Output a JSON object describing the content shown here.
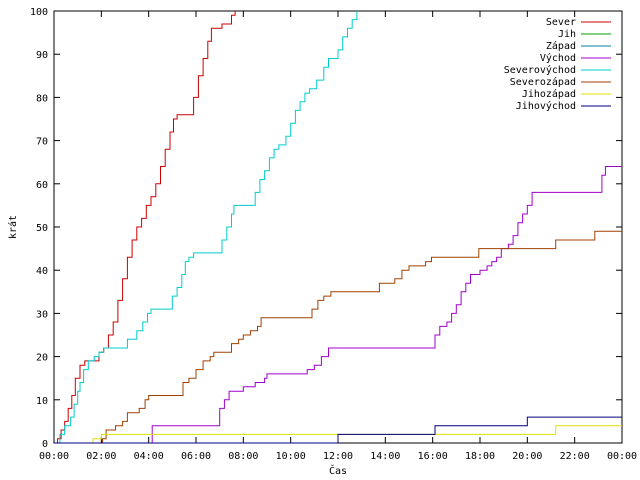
{
  "chart_data": {
    "type": "line",
    "xlabel": "Čas",
    "ylabel": "krát",
    "xlim": [
      0,
      24
    ],
    "ylim": [
      0,
      100
    ],
    "x_ticks": [
      {
        "v": 0,
        "label": "00:00"
      },
      {
        "v": 2,
        "label": "02:00"
      },
      {
        "v": 4,
        "label": "04:00"
      },
      {
        "v": 6,
        "label": "06:00"
      },
      {
        "v": 8,
        "label": "08:00"
      },
      {
        "v": 10,
        "label": "10:00"
      },
      {
        "v": 12,
        "label": "12:00"
      },
      {
        "v": 14,
        "label": "14:00"
      },
      {
        "v": 16,
        "label": "16:00"
      },
      {
        "v": 18,
        "label": "18:00"
      },
      {
        "v": 20,
        "label": "20:00"
      },
      {
        "v": 22,
        "label": "22:00"
      },
      {
        "v": 24,
        "label": "00:00"
      }
    ],
    "y_ticks": [
      0,
      10,
      20,
      30,
      40,
      50,
      60,
      70,
      80,
      90,
      100
    ],
    "grid": false,
    "legend_position": "top-right",
    "series": [
      {
        "name": "Sever",
        "color": "#cc0000",
        "step": true,
        "points": [
          [
            0,
            0
          ],
          [
            0.15,
            1
          ],
          [
            0.3,
            3
          ],
          [
            0.45,
            5
          ],
          [
            0.6,
            8
          ],
          [
            0.75,
            11
          ],
          [
            0.9,
            15
          ],
          [
            1.1,
            18
          ],
          [
            1.3,
            19
          ],
          [
            1.7,
            19
          ],
          [
            1.9,
            21
          ],
          [
            2.1,
            22
          ],
          [
            2.3,
            25
          ],
          [
            2.5,
            28
          ],
          [
            2.7,
            33
          ],
          [
            2.9,
            38
          ],
          [
            3.1,
            43
          ],
          [
            3.3,
            47
          ],
          [
            3.5,
            50
          ],
          [
            3.7,
            52
          ],
          [
            3.9,
            55
          ],
          [
            4.1,
            57
          ],
          [
            4.3,
            60
          ],
          [
            4.5,
            64
          ],
          [
            4.7,
            68
          ],
          [
            4.9,
            72
          ],
          [
            5.05,
            75
          ],
          [
            5.2,
            76
          ],
          [
            5.7,
            76
          ],
          [
            5.9,
            80
          ],
          [
            6.1,
            85
          ],
          [
            6.3,
            89
          ],
          [
            6.5,
            93
          ],
          [
            6.65,
            96
          ],
          [
            7.1,
            97
          ],
          [
            7.5,
            99
          ],
          [
            7.65,
            100
          ]
        ]
      },
      {
        "name": "Jih",
        "color": "#00a000",
        "step": true,
        "points": []
      },
      {
        "name": "Západ",
        "color": "#0080a0",
        "step": true,
        "points": []
      },
      {
        "name": "Východ",
        "color": "#a000cc",
        "step": true,
        "points": [
          [
            0,
            0
          ],
          [
            4.05,
            0
          ],
          [
            4.15,
            4
          ],
          [
            6.85,
            4
          ],
          [
            7.0,
            8
          ],
          [
            7.2,
            10
          ],
          [
            7.4,
            12
          ],
          [
            8.0,
            13
          ],
          [
            8.5,
            14
          ],
          [
            8.9,
            15
          ],
          [
            9.0,
            16
          ],
          [
            10.5,
            16
          ],
          [
            10.7,
            17
          ],
          [
            11.0,
            18
          ],
          [
            11.3,
            20
          ],
          [
            11.6,
            22
          ],
          [
            15.9,
            22
          ],
          [
            16.1,
            25
          ],
          [
            16.3,
            27
          ],
          [
            16.6,
            28
          ],
          [
            16.8,
            30
          ],
          [
            17.0,
            32
          ],
          [
            17.2,
            35
          ],
          [
            17.4,
            37
          ],
          [
            17.6,
            39
          ],
          [
            18.0,
            40
          ],
          [
            18.3,
            41
          ],
          [
            18.5,
            42
          ],
          [
            18.7,
            43
          ],
          [
            18.9,
            45
          ],
          [
            19.2,
            46
          ],
          [
            19.4,
            48
          ],
          [
            19.6,
            51
          ],
          [
            19.8,
            53
          ],
          [
            20.0,
            55
          ],
          [
            20.2,
            58
          ],
          [
            23.0,
            58
          ],
          [
            23.15,
            62
          ],
          [
            23.3,
            64
          ],
          [
            24,
            64
          ]
        ]
      },
      {
        "name": "Severovýchod",
        "color": "#00cccc",
        "step": true,
        "points": [
          [
            0,
            0
          ],
          [
            0.25,
            2
          ],
          [
            0.45,
            4
          ],
          [
            0.7,
            6
          ],
          [
            0.85,
            9
          ],
          [
            1.0,
            12
          ],
          [
            1.1,
            14
          ],
          [
            1.25,
            17
          ],
          [
            1.45,
            19
          ],
          [
            1.7,
            20
          ],
          [
            1.9,
            21
          ],
          [
            2.1,
            22
          ],
          [
            2.9,
            22
          ],
          [
            3.1,
            24
          ],
          [
            3.5,
            26
          ],
          [
            3.75,
            28
          ],
          [
            3.95,
            30
          ],
          [
            4.1,
            31
          ],
          [
            4.8,
            31
          ],
          [
            5.0,
            34
          ],
          [
            5.2,
            36
          ],
          [
            5.4,
            39
          ],
          [
            5.55,
            42
          ],
          [
            5.7,
            43
          ],
          [
            5.9,
            44
          ],
          [
            6.9,
            44
          ],
          [
            7.1,
            47
          ],
          [
            7.3,
            50
          ],
          [
            7.5,
            53
          ],
          [
            7.6,
            55
          ],
          [
            8.3,
            55
          ],
          [
            8.5,
            58
          ],
          [
            8.7,
            61
          ],
          [
            8.9,
            63
          ],
          [
            9.1,
            66
          ],
          [
            9.3,
            68
          ],
          [
            9.5,
            69
          ],
          [
            9.8,
            71
          ],
          [
            10.0,
            74
          ],
          [
            10.2,
            77
          ],
          [
            10.4,
            79
          ],
          [
            10.6,
            81
          ],
          [
            10.8,
            82
          ],
          [
            11.1,
            84
          ],
          [
            11.4,
            87
          ],
          [
            11.6,
            89
          ],
          [
            12.0,
            91
          ],
          [
            12.2,
            94
          ],
          [
            12.4,
            96
          ],
          [
            12.6,
            98
          ],
          [
            12.8,
            100
          ]
        ]
      },
      {
        "name": "Severozápad",
        "color": "#a04000",
        "step": true,
        "points": [
          [
            0,
            0
          ],
          [
            1.95,
            0
          ],
          [
            2.05,
            1
          ],
          [
            2.2,
            3
          ],
          [
            2.6,
            4
          ],
          [
            2.9,
            5
          ],
          [
            3.1,
            7
          ],
          [
            3.6,
            8
          ],
          [
            3.85,
            10
          ],
          [
            4.0,
            11
          ],
          [
            5.3,
            11
          ],
          [
            5.45,
            14
          ],
          [
            5.7,
            15
          ],
          [
            6.0,
            17
          ],
          [
            6.3,
            19
          ],
          [
            6.6,
            20
          ],
          [
            6.75,
            21
          ],
          [
            7.4,
            21
          ],
          [
            7.5,
            23
          ],
          [
            7.8,
            24
          ],
          [
            8.0,
            25
          ],
          [
            8.3,
            26
          ],
          [
            8.6,
            27
          ],
          [
            8.75,
            29
          ],
          [
            10.75,
            29
          ],
          [
            10.9,
            31
          ],
          [
            11.15,
            33
          ],
          [
            11.4,
            34
          ],
          [
            11.7,
            35
          ],
          [
            13.6,
            35
          ],
          [
            13.75,
            37
          ],
          [
            14.4,
            38
          ],
          [
            14.7,
            40
          ],
          [
            15.0,
            41
          ],
          [
            15.55,
            41
          ],
          [
            15.7,
            42
          ],
          [
            15.95,
            43
          ],
          [
            17.8,
            43
          ],
          [
            17.95,
            45
          ],
          [
            21.1,
            45
          ],
          [
            21.2,
            47
          ],
          [
            22.7,
            47
          ],
          [
            22.85,
            49
          ],
          [
            24,
            49
          ]
        ]
      },
      {
        "name": "Jihozápad",
        "color": "#e0e000",
        "step": true,
        "points": [
          [
            0,
            0
          ],
          [
            1.55,
            0
          ],
          [
            1.65,
            1
          ],
          [
            2.0,
            2
          ],
          [
            21.05,
            2
          ],
          [
            21.2,
            4
          ],
          [
            24,
            4
          ]
        ]
      },
      {
        "name": "Jihovýchod",
        "color": "#000080",
        "step": true,
        "points": [
          [
            0,
            0
          ],
          [
            11.9,
            0
          ],
          [
            12.0,
            2
          ],
          [
            16.0,
            2
          ],
          [
            16.1,
            4
          ],
          [
            19.9,
            4
          ],
          [
            20.0,
            6
          ],
          [
            24,
            6
          ]
        ]
      }
    ]
  }
}
